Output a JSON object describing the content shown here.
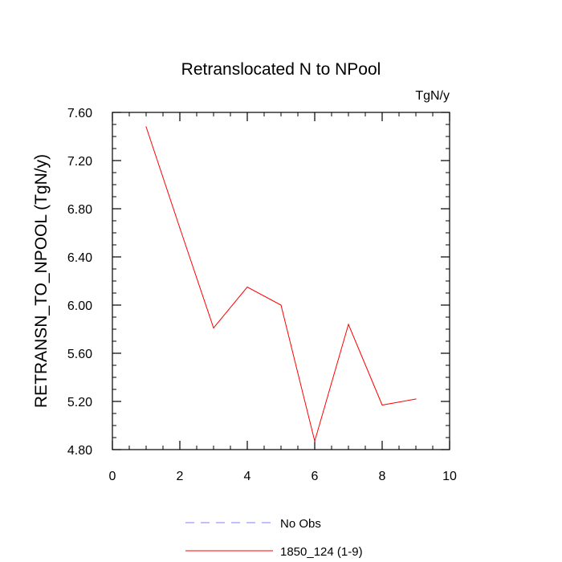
{
  "chart_data": {
    "type": "line",
    "title": "Retranslocated N to NPool",
    "units_label": "TgN/y",
    "ylabel": "RETRANSN_TO_NPOOL  (TgN/y)",
    "xlabel": "",
    "xlim": [
      0,
      10
    ],
    "ylim": [
      4.8,
      7.6
    ],
    "x_ticks": [
      "0",
      "2",
      "4",
      "6",
      "8",
      "10"
    ],
    "y_ticks": [
      "4.80",
      "5.20",
      "5.60",
      "6.00",
      "6.40",
      "6.80",
      "7.20",
      "7.60"
    ],
    "grid": false,
    "legend_position": "bottom",
    "series": [
      {
        "name": "1850_124 (1-9)",
        "color": "#ff0000",
        "style": "solid",
        "x": [
          1,
          2,
          3,
          4,
          5,
          6,
          7,
          8,
          9
        ],
        "values": [
          7.48,
          6.64,
          5.81,
          6.15,
          6.0,
          4.87,
          5.84,
          5.17,
          5.22
        ]
      }
    ],
    "legend": [
      {
        "label": "No Obs",
        "color": "#8080ff",
        "style": "dashed"
      },
      {
        "label": "1850_124 (1-9)",
        "color": "#ff0000",
        "style": "solid"
      }
    ]
  }
}
